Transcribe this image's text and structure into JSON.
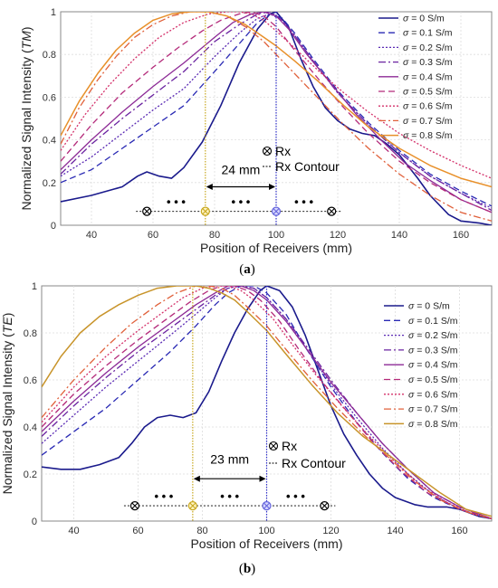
{
  "colors": {
    "s00": "#1a1a8c",
    "s01": "#2a2ab4",
    "s02": "#5a2ab4",
    "s03": "#6a22a0",
    "s04": "#8c2a96",
    "s05": "#b42a7a",
    "s06": "#d4306a",
    "s07": "#e0603a",
    "s08": "#e8902a",
    "s08b": "#c8942a",
    "guide_yellow": "#c8a820",
    "guide_blue": "#3333cc",
    "grid": "#dddddd"
  },
  "chart_data": [
    {
      "type": "line",
      "panel_label": "(a)",
      "xlabel": "Position of Receivers (mm)",
      "ylabel": "Normalized Signal Intensity (TM)",
      "xlim": [
        30,
        170
      ],
      "ylim": [
        0,
        1
      ],
      "xticks": [
        "40",
        "60",
        "80",
        "100",
        "120",
        "140",
        "160"
      ],
      "yticks": [
        "0",
        "0.2",
        "0.4",
        "0.6",
        "0.8",
        "1"
      ],
      "grid": true,
      "legend_position": "top-right",
      "annotations": {
        "distance_label": "24 mm",
        "rx_label": "Rx",
        "contour_label": "Rx Contour",
        "dots": "• • •",
        "guide_x": [
          77,
          100
        ],
        "rx_marker_x": [
          58,
          77,
          100,
          118
        ]
      },
      "series": [
        {
          "name": "σ = 0 S/m",
          "color_key": "s00",
          "dash": "",
          "width": 1.6,
          "x": [
            30,
            40,
            50,
            55,
            58,
            62,
            66,
            70,
            76,
            82,
            88,
            94,
            98,
            100,
            104,
            108,
            112,
            116,
            120,
            124,
            128,
            132,
            136,
            140,
            146,
            150,
            156,
            160,
            166,
            170
          ],
          "y": [
            0.11,
            0.14,
            0.18,
            0.23,
            0.25,
            0.23,
            0.22,
            0.27,
            0.39,
            0.56,
            0.76,
            0.92,
            0.99,
            1.0,
            0.93,
            0.78,
            0.65,
            0.55,
            0.49,
            0.45,
            0.43,
            0.42,
            0.38,
            0.33,
            0.22,
            0.14,
            0.05,
            0.02,
            0.01,
            0.0
          ]
        },
        {
          "name": "σ = 0.1 S/m",
          "color_key": "s01",
          "dash": "7,4",
          "width": 1.3,
          "x": [
            30,
            40,
            50,
            60,
            70,
            80,
            88,
            94,
            98,
            102,
            106,
            112,
            120,
            130,
            140,
            150,
            160,
            170
          ],
          "y": [
            0.2,
            0.26,
            0.36,
            0.46,
            0.56,
            0.72,
            0.85,
            0.95,
            0.99,
            0.97,
            0.9,
            0.78,
            0.63,
            0.48,
            0.35,
            0.24,
            0.16,
            0.09
          ]
        },
        {
          "name": "σ = 0.2 S/m",
          "color_key": "s02",
          "dash": "2,2",
          "width": 1.3,
          "x": [
            30,
            40,
            50,
            60,
            70,
            80,
            88,
            94,
            98,
            102,
            106,
            112,
            120,
            130,
            140,
            150,
            160,
            170
          ],
          "y": [
            0.23,
            0.32,
            0.43,
            0.54,
            0.64,
            0.79,
            0.9,
            0.97,
            0.99,
            0.96,
            0.89,
            0.77,
            0.62,
            0.47,
            0.34,
            0.23,
            0.15,
            0.08
          ]
        },
        {
          "name": "σ = 0.3 S/m",
          "color_key": "s03",
          "dash": "8,3,2,3",
          "width": 1.3,
          "x": [
            30,
            40,
            50,
            60,
            70,
            80,
            88,
            94,
            98,
            102,
            106,
            112,
            120,
            130,
            140,
            150,
            160,
            170
          ],
          "y": [
            0.24,
            0.38,
            0.5,
            0.61,
            0.72,
            0.86,
            0.94,
            0.99,
            1.0,
            0.96,
            0.89,
            0.77,
            0.62,
            0.47,
            0.34,
            0.23,
            0.15,
            0.07
          ]
        },
        {
          "name": "σ = 0.4 S/m",
          "color_key": "s04",
          "dash": "",
          "width": 1.3,
          "x": [
            30,
            40,
            50,
            60,
            70,
            80,
            86,
            92,
            96,
            100,
            104,
            110,
            118,
            126,
            134,
            142,
            150,
            160,
            170
          ],
          "y": [
            0.26,
            0.4,
            0.53,
            0.65,
            0.76,
            0.88,
            0.95,
            0.99,
            1.0,
            0.98,
            0.92,
            0.8,
            0.66,
            0.52,
            0.4,
            0.29,
            0.21,
            0.12,
            0.06
          ]
        },
        {
          "name": "σ = 0.5 S/m",
          "color_key": "s05",
          "dash": "7,4",
          "width": 1.3,
          "x": [
            30,
            40,
            50,
            60,
            68,
            76,
            82,
            88,
            92,
            96,
            100,
            106,
            114,
            122,
            130,
            140,
            150,
            160,
            170
          ],
          "y": [
            0.3,
            0.47,
            0.62,
            0.74,
            0.83,
            0.91,
            0.96,
            0.99,
            1.0,
            0.98,
            0.93,
            0.82,
            0.68,
            0.55,
            0.43,
            0.3,
            0.2,
            0.12,
            0.06
          ]
        },
        {
          "name": "σ = 0.6 S/m",
          "color_key": "s06",
          "dash": "2,2",
          "width": 1.3,
          "x": [
            30,
            38,
            46,
            54,
            62,
            70,
            78,
            84,
            88,
            92,
            96,
            100,
            106,
            114,
            122,
            130,
            140,
            150,
            160,
            170
          ],
          "y": [
            0.35,
            0.52,
            0.66,
            0.78,
            0.88,
            0.95,
            0.99,
            1.0,
            1.0,
            0.99,
            0.96,
            0.91,
            0.83,
            0.72,
            0.62,
            0.53,
            0.43,
            0.35,
            0.28,
            0.22
          ]
        },
        {
          "name": "σ = 0.7 S/m",
          "color_key": "s07",
          "dash": "8,3,2,3",
          "width": 1.3,
          "x": [
            30,
            36,
            42,
            48,
            54,
            60,
            66,
            72,
            78,
            84,
            90,
            96,
            100,
            106,
            114,
            122,
            130,
            140,
            150,
            160,
            170
          ],
          "y": [
            0.38,
            0.55,
            0.68,
            0.79,
            0.88,
            0.94,
            0.98,
            1.0,
            1.0,
            0.98,
            0.93,
            0.86,
            0.8,
            0.71,
            0.59,
            0.47,
            0.36,
            0.24,
            0.14,
            0.06,
            0.02
          ]
        },
        {
          "name": "σ = 0.8 S/m",
          "color_key": "s08",
          "dash": "",
          "width": 1.5,
          "x": [
            30,
            36,
            42,
            48,
            54,
            60,
            66,
            72,
            78,
            84,
            90,
            96,
            100,
            106,
            114,
            122,
            130,
            140,
            150,
            160,
            170
          ],
          "y": [
            0.42,
            0.58,
            0.71,
            0.82,
            0.9,
            0.96,
            0.99,
            1.0,
            1.0,
            0.98,
            0.94,
            0.88,
            0.84,
            0.77,
            0.67,
            0.56,
            0.46,
            0.36,
            0.28,
            0.22,
            0.18
          ]
        }
      ]
    },
    {
      "type": "line",
      "panel_label": "(b)",
      "xlabel": "Position of Receivers (mm)",
      "ylabel": "Normalized Signal Intensity (TE)",
      "xlim": [
        30,
        170
      ],
      "ylim": [
        0,
        1
      ],
      "xticks": [
        "40",
        "60",
        "80",
        "100",
        "120",
        "140",
        "160"
      ],
      "yticks": [
        "0",
        "0.2",
        "0.4",
        "0.6",
        "0.8",
        "1"
      ],
      "grid": true,
      "legend_position": "top-right",
      "annotations": {
        "distance_label": "23 mm",
        "rx_label": "Rx",
        "contour_label": "Rx Contour",
        "dots": "• • •",
        "guide_x": [
          77,
          100
        ],
        "rx_marker_x": [
          59,
          77,
          100,
          118
        ]
      },
      "series": [
        {
          "name": "σ = 0 S/m",
          "color_key": "s00",
          "dash": "",
          "width": 1.6,
          "x": [
            30,
            36,
            42,
            48,
            54,
            58,
            62,
            66,
            70,
            74,
            78,
            82,
            86,
            90,
            94,
            98,
            100,
            104,
            108,
            112,
            116,
            120,
            124,
            128,
            132,
            136,
            140,
            146,
            150,
            156,
            160,
            166,
            170
          ],
          "y": [
            0.23,
            0.22,
            0.22,
            0.24,
            0.27,
            0.33,
            0.4,
            0.44,
            0.45,
            0.44,
            0.46,
            0.55,
            0.68,
            0.8,
            0.9,
            0.98,
            1.0,
            0.98,
            0.91,
            0.79,
            0.64,
            0.49,
            0.37,
            0.28,
            0.2,
            0.14,
            0.1,
            0.07,
            0.06,
            0.06,
            0.05,
            0.02,
            0.01
          ]
        },
        {
          "name": "σ = 0.1 S/m",
          "color_key": "s01",
          "dash": "7,4",
          "width": 1.3,
          "x": [
            30,
            40,
            50,
            60,
            70,
            78,
            84,
            88,
            92,
            96,
            100,
            106,
            112,
            120,
            128,
            136,
            144,
            152,
            160,
            170
          ],
          "y": [
            0.28,
            0.38,
            0.48,
            0.6,
            0.72,
            0.83,
            0.92,
            0.97,
            1.0,
            1.0,
            0.97,
            0.88,
            0.74,
            0.57,
            0.42,
            0.29,
            0.18,
            0.1,
            0.05,
            0.01
          ]
        },
        {
          "name": "σ = 0.2 S/m",
          "color_key": "s02",
          "dash": "2,2",
          "width": 1.3,
          "x": [
            30,
            40,
            50,
            60,
            70,
            78,
            84,
            88,
            92,
            96,
            100,
            106,
            112,
            120,
            128,
            136,
            144,
            152,
            160,
            170
          ],
          "y": [
            0.33,
            0.45,
            0.57,
            0.68,
            0.79,
            0.88,
            0.95,
            0.99,
            1.0,
            0.99,
            0.95,
            0.86,
            0.74,
            0.58,
            0.44,
            0.31,
            0.2,
            0.11,
            0.05,
            0.01
          ]
        },
        {
          "name": "σ = 0.3 S/m",
          "color_key": "s03",
          "dash": "8,3,2,3",
          "width": 1.3,
          "x": [
            30,
            40,
            50,
            60,
            70,
            78,
            84,
            88,
            92,
            96,
            100,
            106,
            112,
            120,
            128,
            136,
            144,
            152,
            160,
            170
          ],
          "y": [
            0.36,
            0.49,
            0.61,
            0.72,
            0.82,
            0.9,
            0.96,
            0.99,
            1.0,
            0.99,
            0.95,
            0.86,
            0.75,
            0.6,
            0.46,
            0.33,
            0.22,
            0.12,
            0.06,
            0.01
          ]
        },
        {
          "name": "σ = 0.4 S/m",
          "color_key": "s04",
          "dash": "",
          "width": 1.3,
          "x": [
            30,
            40,
            50,
            60,
            70,
            78,
            84,
            88,
            92,
            96,
            100,
            106,
            112,
            120,
            128,
            136,
            144,
            152,
            160,
            170
          ],
          "y": [
            0.38,
            0.51,
            0.63,
            0.74,
            0.84,
            0.92,
            0.97,
            1.0,
            1.0,
            0.98,
            0.94,
            0.85,
            0.74,
            0.59,
            0.46,
            0.33,
            0.22,
            0.12,
            0.06,
            0.01
          ]
        },
        {
          "name": "σ = 0.5 S/m",
          "color_key": "s05",
          "dash": "7,4",
          "width": 1.3,
          "x": [
            30,
            40,
            50,
            60,
            70,
            76,
            82,
            86,
            90,
            94,
            98,
            104,
            110,
            118,
            126,
            134,
            142,
            150,
            160,
            170
          ],
          "y": [
            0.4,
            0.54,
            0.66,
            0.77,
            0.87,
            0.93,
            0.98,
            1.0,
            1.0,
            0.98,
            0.94,
            0.85,
            0.73,
            0.58,
            0.45,
            0.32,
            0.21,
            0.12,
            0.05,
            0.01
          ]
        },
        {
          "name": "σ = 0.6 S/m",
          "color_key": "s06",
          "dash": "2,2",
          "width": 1.3,
          "x": [
            30,
            40,
            50,
            60,
            68,
            74,
            80,
            84,
            88,
            92,
            96,
            102,
            108,
            116,
            124,
            132,
            140,
            148,
            156,
            164,
            170
          ],
          "y": [
            0.42,
            0.57,
            0.7,
            0.81,
            0.89,
            0.95,
            0.99,
            1.0,
            1.0,
            0.98,
            0.94,
            0.86,
            0.75,
            0.61,
            0.48,
            0.36,
            0.25,
            0.15,
            0.08,
            0.03,
            0.01
          ]
        },
        {
          "name": "σ = 0.7 S/m",
          "color_key": "s07",
          "dash": "8,3,2,3",
          "width": 1.3,
          "x": [
            30,
            40,
            50,
            58,
            66,
            72,
            78,
            82,
            86,
            90,
            94,
            100,
            106,
            114,
            122,
            130,
            138,
            146,
            154,
            162,
            170
          ],
          "y": [
            0.44,
            0.6,
            0.74,
            0.84,
            0.92,
            0.97,
            1.0,
            1.0,
            0.99,
            0.96,
            0.91,
            0.83,
            0.73,
            0.6,
            0.48,
            0.37,
            0.27,
            0.17,
            0.09,
            0.04,
            0.01
          ]
        },
        {
          "name": "σ = 0.8 S/m",
          "color_key": "s08b",
          "dash": "",
          "width": 1.5,
          "x": [
            30,
            36,
            42,
            48,
            54,
            60,
            66,
            72,
            78,
            82,
            86,
            90,
            94,
            100,
            106,
            114,
            122,
            130,
            138,
            146,
            154,
            162,
            170
          ],
          "y": [
            0.57,
            0.7,
            0.8,
            0.87,
            0.92,
            0.96,
            0.99,
            1.0,
            1.0,
            0.99,
            0.97,
            0.94,
            0.89,
            0.81,
            0.71,
            0.58,
            0.46,
            0.36,
            0.28,
            0.2,
            0.12,
            0.05,
            0.02
          ]
        }
      ]
    }
  ]
}
